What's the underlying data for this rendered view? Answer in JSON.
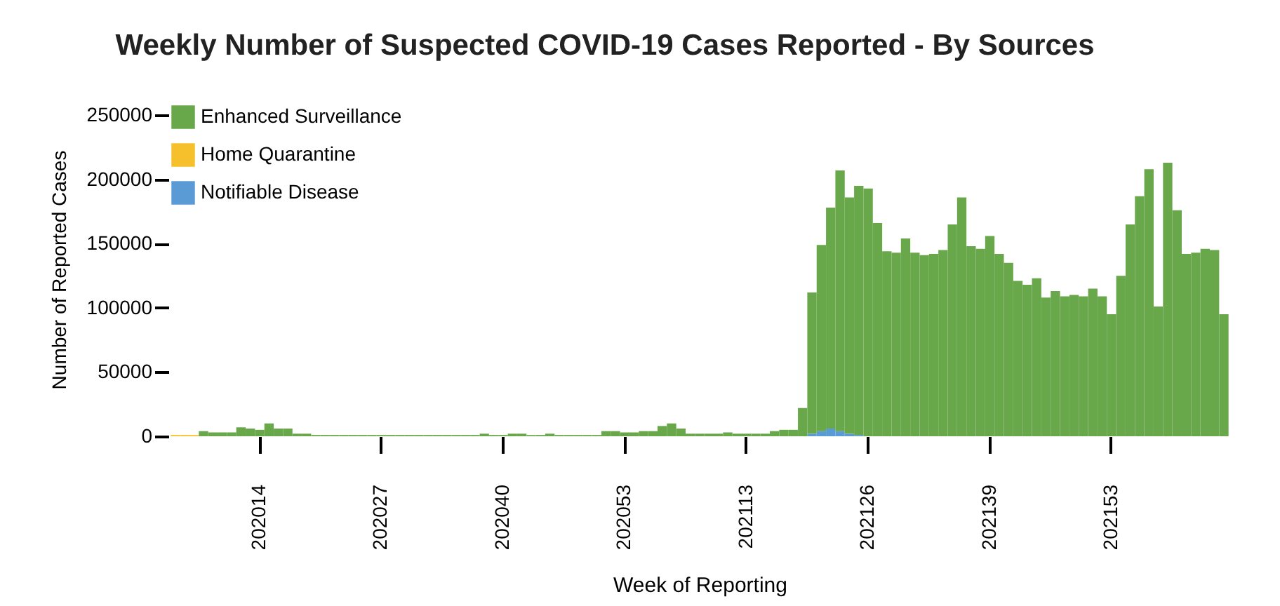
{
  "chart_data": {
    "type": "bar",
    "title": "Weekly Number of Suspected COVID-19 Cases Reported - By Sources",
    "xlabel": "Week of Reporting",
    "ylabel": "Number of Reported Cases",
    "categories": [
      null,
      null,
      null,
      null,
      null,
      null,
      null,
      null,
      null,
      "202014",
      null,
      null,
      null,
      null,
      null,
      null,
      null,
      null,
      null,
      null,
      null,
      null,
      "202027",
      null,
      null,
      null,
      null,
      null,
      null,
      null,
      null,
      null,
      null,
      null,
      null,
      "202040",
      null,
      null,
      null,
      null,
      null,
      null,
      null,
      null,
      null,
      null,
      null,
      null,
      "202053",
      null,
      null,
      null,
      null,
      null,
      null,
      null,
      null,
      null,
      null,
      null,
      null,
      "202113",
      null,
      null,
      null,
      null,
      null,
      null,
      null,
      null,
      null,
      null,
      null,
      null,
      "202126",
      null,
      null,
      null,
      null,
      null,
      null,
      null,
      null,
      null,
      null,
      null,
      null,
      "202139",
      null,
      null,
      null,
      null,
      null,
      null,
      null,
      null,
      null,
      null,
      null,
      null,
      "202153",
      null,
      null,
      null,
      null,
      null,
      null,
      null,
      null,
      null,
      null,
      null,
      null
    ],
    "stacked": true,
    "series": [
      {
        "name": "Notifiable Disease",
        "color": "#5b9bd5",
        "values": [
          0,
          0,
          0,
          0,
          0,
          0,
          0,
          0,
          0,
          0,
          0,
          0,
          0,
          0,
          0,
          0,
          0,
          0,
          0,
          0,
          0,
          0,
          0,
          0,
          0,
          0,
          0,
          0,
          0,
          0,
          0,
          0,
          0,
          0,
          0,
          0,
          0,
          0,
          0,
          0,
          0,
          0,
          0,
          0,
          0,
          0,
          0,
          0,
          0,
          0,
          0,
          0,
          0,
          0,
          0,
          0,
          0,
          0,
          0,
          0,
          0,
          0,
          0,
          0,
          0,
          0,
          0,
          0,
          2000,
          4000,
          6000,
          4000,
          2000,
          1000,
          0,
          0,
          0,
          0,
          0,
          0,
          0,
          0,
          0,
          0,
          0,
          0,
          0,
          0,
          0,
          0,
          0,
          0,
          0,
          0,
          0,
          0,
          0,
          0,
          0,
          0,
          0,
          0,
          0,
          0,
          0,
          0,
          0,
          0,
          0,
          0,
          0,
          0,
          0
        ]
      },
      {
        "name": "Home Quarantine",
        "color": "#f5c02c",
        "values": [
          1000,
          1000,
          1000,
          0,
          0,
          0,
          0,
          0,
          0,
          0,
          0,
          0,
          0,
          0,
          0,
          0,
          0,
          0,
          0,
          0,
          0,
          0,
          0,
          0,
          0,
          0,
          0,
          0,
          0,
          0,
          0,
          0,
          0,
          0,
          0,
          0,
          0,
          0,
          0,
          0,
          0,
          0,
          0,
          0,
          0,
          0,
          0,
          0,
          0,
          0,
          0,
          0,
          0,
          0,
          0,
          0,
          0,
          0,
          0,
          0,
          0,
          0,
          0,
          0,
          0,
          0,
          0,
          0,
          0,
          0,
          0,
          0,
          0,
          0,
          0,
          0,
          0,
          0,
          0,
          0,
          0,
          0,
          0,
          0,
          0,
          0,
          0,
          0,
          0,
          0,
          0,
          0,
          0,
          0,
          0,
          0,
          0,
          0,
          0,
          0,
          0,
          0,
          0,
          0,
          0,
          0,
          0,
          0,
          0,
          0,
          0,
          0,
          0
        ]
      },
      {
        "name": "Enhanced Surveillance",
        "color": "#68a84b",
        "values": [
          0,
          0,
          0,
          4000,
          3000,
          3000,
          3000,
          7000,
          6000,
          5000,
          10000,
          6000,
          6000,
          2000,
          2000,
          1000,
          1000,
          1000,
          1000,
          1000,
          1000,
          1000,
          1000,
          1000,
          1000,
          1000,
          1000,
          1000,
          1000,
          1000,
          1000,
          1000,
          1000,
          2000,
          1000,
          1000,
          2000,
          2000,
          1000,
          1000,
          2000,
          1000,
          1000,
          1000,
          1000,
          1000,
          4000,
          4000,
          3000,
          3000,
          4000,
          4000,
          8000,
          10000,
          6000,
          2000,
          2000,
          2000,
          2000,
          3000,
          2000,
          2000,
          2000,
          2000,
          4000,
          5000,
          5000,
          22000,
          110000,
          145000,
          172000,
          203000,
          184000,
          194000,
          193000,
          166000,
          144000,
          143000,
          154000,
          143000,
          141000,
          142000,
          145000,
          165000,
          186000,
          148000,
          146000,
          156000,
          142000,
          135000,
          121000,
          118000,
          123000,
          108000,
          113000,
          109000,
          110000,
          109000,
          115000,
          109000,
          95000,
          125000,
          165000,
          187000,
          208000,
          101000,
          213000,
          176000,
          142000,
          143000,
          146000,
          145000,
          95000
        ]
      }
    ],
    "ylim": [
      0,
      260000
    ],
    "yticks": [
      0,
      50000,
      100000,
      150000,
      200000,
      250000
    ],
    "grid": false,
    "legend": "top left"
  }
}
